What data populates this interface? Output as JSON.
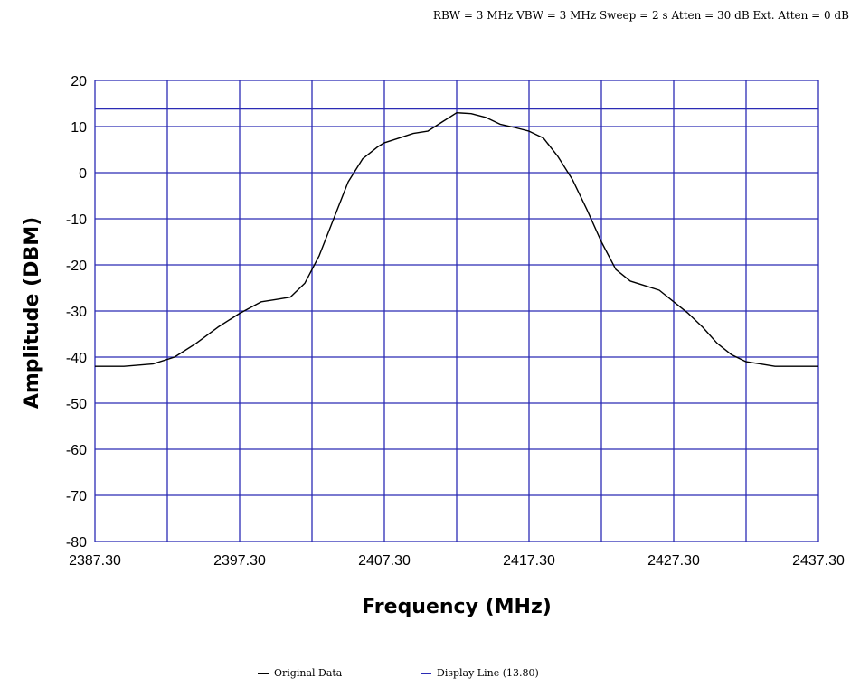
{
  "settings_text": "RBW = 3 MHz  VBW = 3 MHz  Sweep = 2 s  Atten = 30 dB  Ext. Atten = 0 dB",
  "colors": {
    "grid": "#2b2bb5",
    "trace": "#000000",
    "display_line": "#2b2bb5"
  },
  "chart_data": {
    "type": "line",
    "title": "",
    "xlabel": "Frequency (MHz)",
    "ylabel": "Amplitude (DBM)",
    "xlim": [
      2387.3,
      2437.3
    ],
    "ylim": [
      -80,
      20
    ],
    "x_ticks": [
      "2387.30",
      "2397.30",
      "2407.30",
      "2417.30",
      "2427.30",
      "2437.30"
    ],
    "y_ticks": [
      "20",
      "10",
      "0",
      "-10",
      "-20",
      "-30",
      "-40",
      "-50",
      "-60",
      "-70",
      "-80"
    ],
    "x_grid_step": 5,
    "y_grid_step": 10,
    "grid": true,
    "legend_position": "bottom-center",
    "series": [
      {
        "name": "Original Data",
        "x": [
          2387.3,
          2389.3,
          2391.3,
          2392.8,
          2394.3,
          2395.8,
          2397.3,
          2398.8,
          2399.8,
          2400.8,
          2401.8,
          2402.8,
          2403.8,
          2404.8,
          2405.8,
          2406.8,
          2407.3,
          2408.3,
          2409.3,
          2410.3,
          2411.3,
          2412.3,
          2413.3,
          2414.3,
          2415.3,
          2416.3,
          2417.3,
          2418.3,
          2419.3,
          2420.3,
          2421.3,
          2422.3,
          2423.3,
          2424.3,
          2425.3,
          2426.3,
          2427.3,
          2428.3,
          2429.3,
          2430.3,
          2431.3,
          2432.3,
          2433.3,
          2434.3,
          2435.3,
          2436.3,
          2437.3
        ],
        "values": [
          -42,
          -42,
          -41.5,
          -40,
          -37,
          -33.5,
          -30.5,
          -28,
          -27.5,
          -27,
          -24,
          -18,
          -10,
          -2,
          3,
          5.5,
          6.5,
          7.5,
          8.5,
          9,
          11,
          13,
          12.8,
          12,
          10.5,
          9.8,
          9,
          7.5,
          3.5,
          -1.5,
          -8,
          -15,
          -21,
          -23.5,
          -24.5,
          -25.5,
          -28,
          -30.5,
          -33.5,
          -37,
          -39.5,
          -41,
          -41.5,
          -42,
          -42,
          -42,
          -42
        ]
      },
      {
        "name": "Display Line (13.80)",
        "value": 13.8
      }
    ]
  }
}
